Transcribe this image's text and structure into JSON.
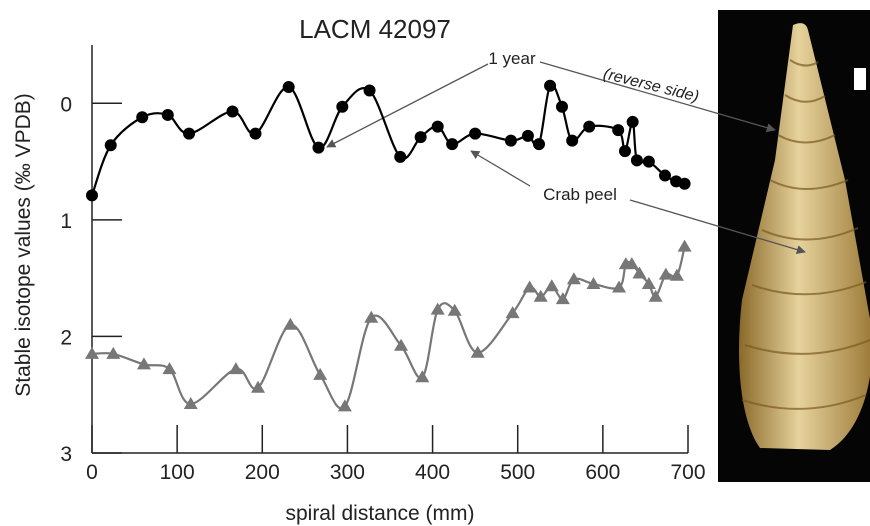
{
  "chart_data": {
    "type": "line",
    "title": "LACM 42097",
    "x_label": "spiral distance (mm)",
    "y_label": "Stable isotope values (‰ VPDB)",
    "xlim": [
      0,
      700
    ],
    "xticks": [
      0,
      100,
      200,
      300,
      400,
      500,
      600,
      700
    ],
    "ylim": [
      -0.5,
      3
    ],
    "yticks": [
      0,
      1,
      2,
      3
    ],
    "y_inverted": true,
    "series": [
      {
        "color": "#000000",
        "marker": "circle",
        "x": [
          0,
          22,
          59,
          89,
          114,
          165,
          192,
          231,
          266,
          294,
          326,
          362,
          386,
          406,
          423,
          450,
          492,
          512,
          525,
          538,
          552,
          564,
          584,
          618,
          626,
          635,
          640,
          654,
          673,
          686,
          696
        ],
        "values": [
          0.79,
          0.36,
          0.12,
          0.1,
          0.26,
          0.07,
          0.26,
          -0.14,
          0.38,
          0.03,
          -0.11,
          0.46,
          0.29,
          0.2,
          0.35,
          0.26,
          0.32,
          0.28,
          0.35,
          -0.15,
          0.03,
          0.32,
          0.2,
          0.23,
          0.41,
          0.16,
          0.49,
          0.5,
          0.62,
          0.67,
          0.69
        ]
      },
      {
        "color": "#777777",
        "marker": "triangle",
        "x": [
          0,
          25,
          61,
          91,
          116,
          169,
          195,
          233,
          268,
          297,
          328,
          363,
          388,
          406,
          426,
          453,
          494,
          514,
          527,
          540,
          553,
          566,
          589,
          619,
          627,
          634,
          643,
          654,
          662,
          674,
          687,
          696
        ],
        "values": [
          2.15,
          2.15,
          2.24,
          2.28,
          2.58,
          2.28,
          2.44,
          1.9,
          2.33,
          2.6,
          1.84,
          2.08,
          2.35,
          1.77,
          1.78,
          2.14,
          1.8,
          1.58,
          1.66,
          1.57,
          1.68,
          1.51,
          1.55,
          1.58,
          1.38,
          1.38,
          1.46,
          1.55,
          1.66,
          1.47,
          1.48,
          1.23
        ]
      }
    ],
    "annotations": [
      "1 year",
      "(reverse side)",
      "Crab peel"
    ]
  }
}
